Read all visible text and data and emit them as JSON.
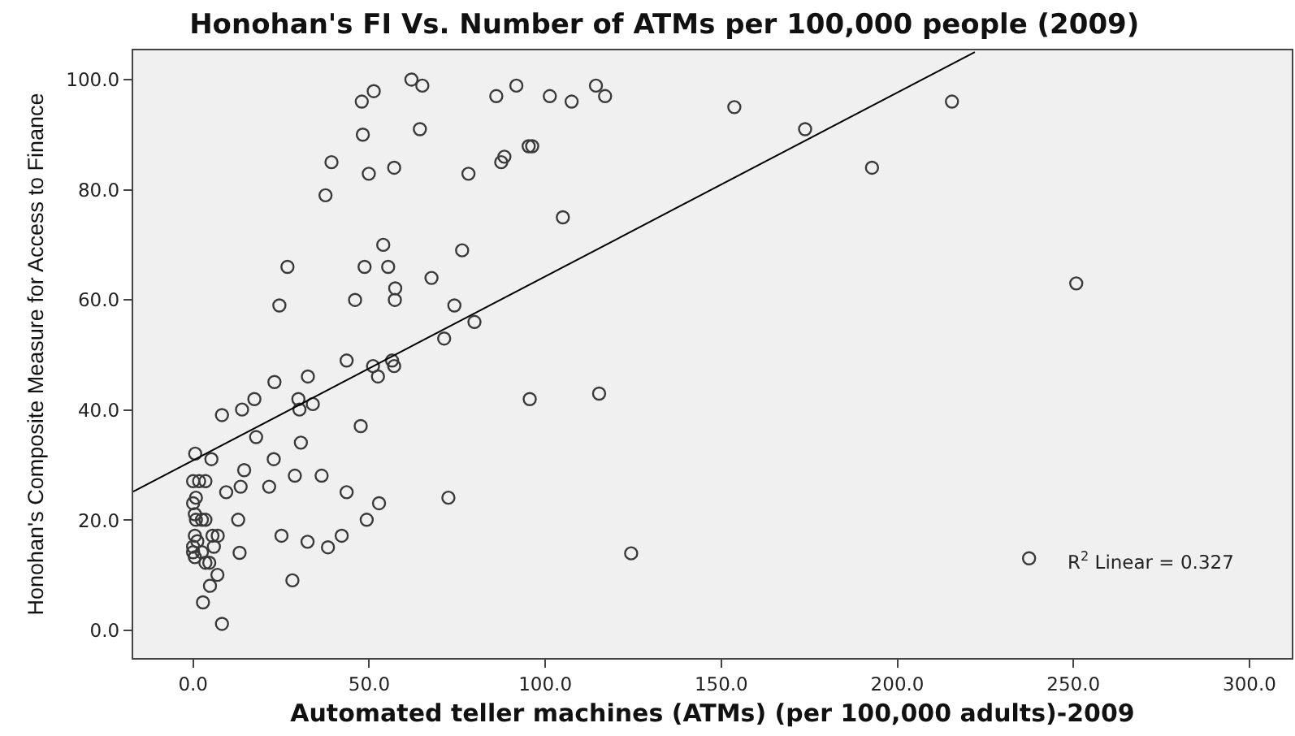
{
  "chart_data": {
    "type": "scatter",
    "title": "Honohan's FI Vs. Number of ATMs per 100,000 people (2009)",
    "xlabel": "Automated teller machines (ATMs) (per 100,000 adults)-2009",
    "ylabel": "Honohan's Composite Measure for Access to Finance",
    "annotations": [
      "R$^{2}$ Linear = 0.327"
    ],
    "xlim": [
      -17,
      312
    ],
    "ylim": [
      -5,
      105.3
    ],
    "xticks": [
      {
        "value": 0,
        "label": "0.0"
      },
      {
        "value": 50,
        "label": "50.0"
      },
      {
        "value": 100,
        "label": "100.0"
      },
      {
        "value": 150,
        "label": "150.0"
      },
      {
        "value": 200,
        "label": "200.0"
      },
      {
        "value": 250,
        "label": "250.0"
      },
      {
        "value": 300,
        "label": "300.0"
      }
    ],
    "yticks": [
      {
        "value": 0,
        "label": "0.0"
      },
      {
        "value": 20,
        "label": "20.0"
      },
      {
        "value": 40,
        "label": "40.0"
      },
      {
        "value": 60,
        "label": "60.0"
      },
      {
        "value": 80,
        "label": "80.0"
      },
      {
        "value": 100,
        "label": "100.0"
      }
    ],
    "series": [
      {
        "color": "#3a3a3a",
        "marker": "circle",
        "x": [
          62.0,
          65.1,
          51.3,
          47.9,
          64.4,
          48.2,
          39.3,
          57.1,
          49.9,
          37.6,
          54.0,
          26.8,
          48.7,
          55.4,
          67.7,
          57.4,
          24.5,
          46.0,
          57.3,
          74.2,
          71.3,
          43.6,
          51.1,
          56.5,
          57.1,
          52.5,
          23.1,
          32.6,
          17.4,
          29.9,
          13.9,
          30.2,
          34.0,
          8.2,
          47.6,
          17.9,
          30.6,
          0.6,
          5.2,
          22.9,
          14.5,
          0.0,
          1.7,
          3.5,
          13.5,
          21.6,
          28.9,
          36.5,
          9.4,
          43.6,
          52.8,
          72.5,
          0.8,
          0.0,
          0.5,
          0.8,
          2.5,
          3.5,
          0.5,
          1.2,
          0.0,
          0.0,
          0.5,
          2.5,
          3.5,
          4.6,
          5.5,
          7.0,
          5.9,
          6.9,
          4.8,
          2.8,
          8.2,
          12.8,
          13.2,
          25.1,
          32.5,
          38.3,
          42.2,
          49.3,
          28.2,
          91.8,
          86.1,
          101.3,
          107.5,
          114.4,
          117.0,
          153.7,
          173.8,
          95.3,
          96.3,
          88.4,
          87.5,
          78.2,
          192.8,
          105.0,
          76.4,
          79.9,
          95.6,
          115.3,
          124.4,
          215.5,
          250.8,
          237.4
        ],
        "values": [
          100.0,
          98.9,
          97.9,
          96.0,
          91.0,
          90.0,
          85.0,
          84.0,
          82.9,
          79.0,
          70.0,
          66.0,
          66.0,
          66.0,
          64.0,
          62.1,
          59.0,
          60.0,
          60.0,
          59.0,
          53.0,
          49.0,
          48.0,
          49.0,
          48.0,
          46.1,
          45.1,
          46.1,
          42.0,
          42.0,
          40.1,
          40.1,
          41.1,
          39.1,
          37.1,
          35.1,
          34.1,
          32.1,
          31.1,
          31.1,
          29.1,
          27.1,
          27.1,
          27.1,
          26.1,
          26.1,
          28.1,
          28.1,
          25.1,
          25.1,
          23.1,
          24.1,
          24.1,
          23.1,
          21.1,
          20.1,
          20.1,
          20.1,
          17.2,
          16.2,
          15.2,
          14.2,
          13.3,
          14.2,
          12.3,
          12.3,
          17.2,
          17.2,
          15.2,
          10.1,
          8.1,
          5.1,
          1.2,
          20.1,
          14.1,
          17.2,
          16.1,
          15.1,
          17.2,
          20.1,
          9.1,
          98.9,
          97.0,
          97.0,
          96.0,
          98.9,
          97.0,
          95.0,
          91.0,
          87.9,
          87.9,
          86.0,
          85.0,
          82.9,
          84.0,
          75.0,
          69.0,
          56.0,
          42.0,
          43.0,
          14.0,
          96.0,
          63.0,
          13.1
        ]
      },
      {
        "type": "line",
        "color": "#000000",
        "line_style": "solid",
        "x": [
          -17,
          222
        ],
        "values": [
          25.2,
          105.0
        ]
      }
    ]
  }
}
